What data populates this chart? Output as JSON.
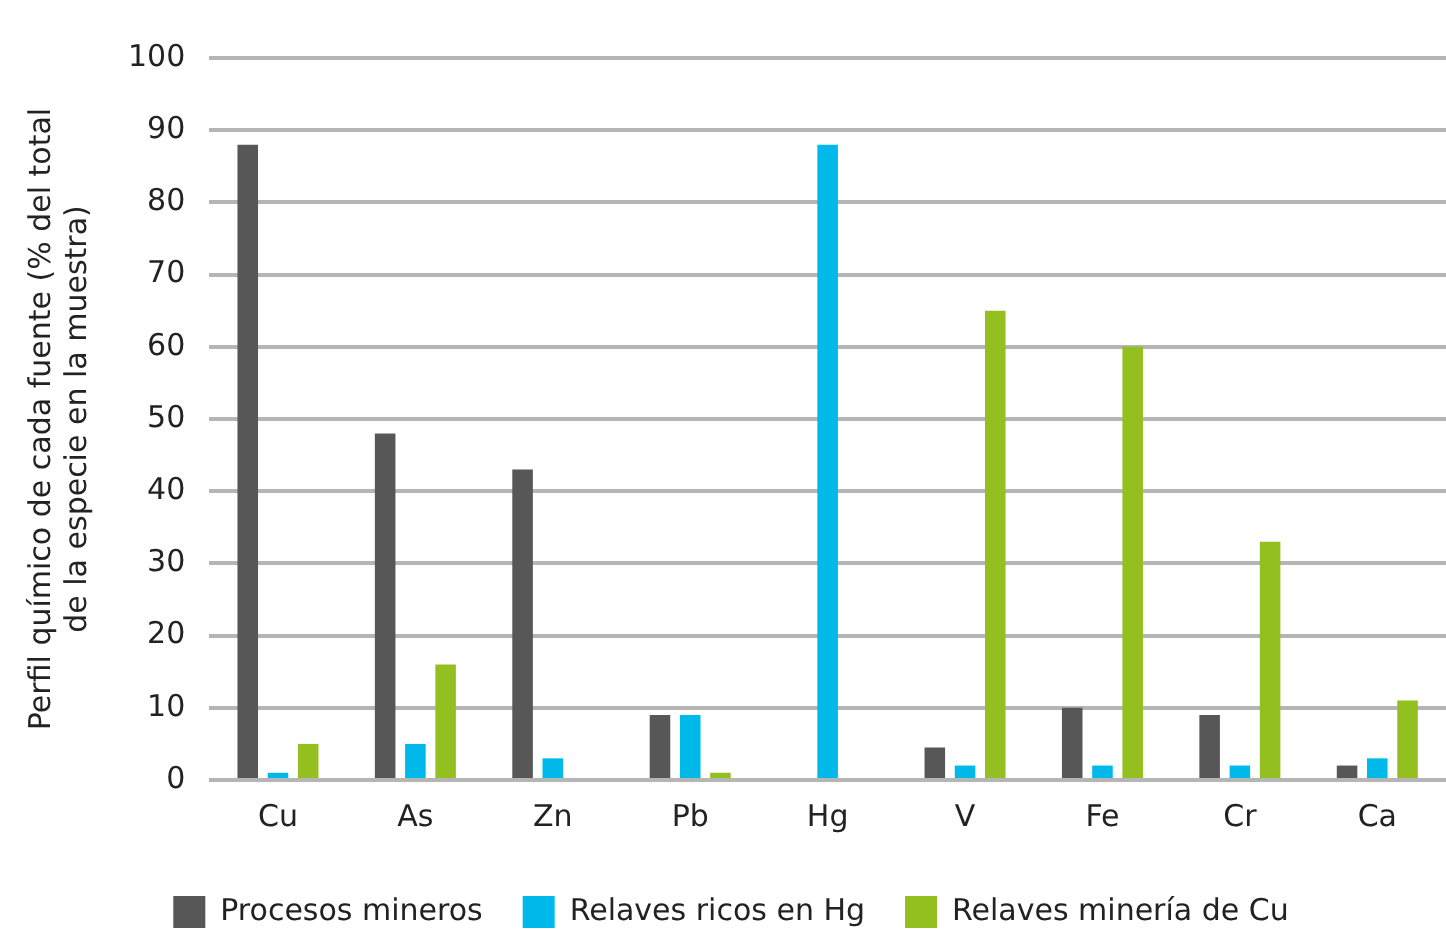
{
  "chart_data": {
    "type": "bar",
    "ylabel": "Perfil químico de cada fuente (% del total de la especie en la muestra)",
    "categories": [
      "Cu",
      "As",
      "Zn",
      "Pb",
      "Hg",
      "V",
      "Fe",
      "Cr",
      "Ca"
    ],
    "series": [
      {
        "name": "Procesos mineros",
        "color": "#575757",
        "values": [
          88,
          48,
          43,
          9,
          0,
          4.5,
          10,
          9,
          2
        ]
      },
      {
        "name": "Relaves ricos en Hg",
        "color": "#00b9eb",
        "values": [
          1,
          5,
          3,
          9,
          88,
          2,
          2,
          2,
          3
        ]
      },
      {
        "name": "Relaves minería de Cu",
        "color": "#93c01f",
        "values": [
          5,
          16,
          0,
          1,
          0,
          65,
          60,
          33,
          11
        ]
      }
    ],
    "ylim": [
      0,
      100
    ],
    "yticks": [
      0,
      10,
      20,
      30,
      40,
      50,
      60,
      70,
      80,
      90,
      100
    ],
    "grid": "y",
    "legend": "bottom"
  }
}
